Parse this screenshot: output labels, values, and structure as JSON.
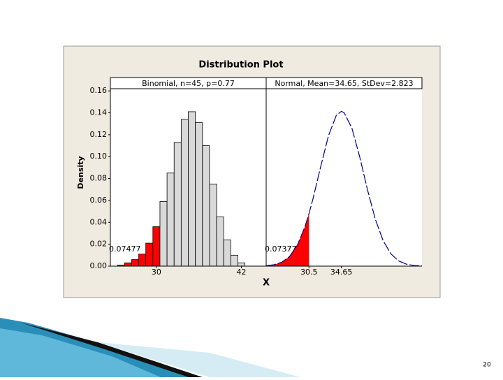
{
  "figure": {
    "title": "Distribution Plot",
    "y_label": "Density",
    "x_label": "X"
  },
  "slide": {
    "page_number": "20"
  },
  "chart_data": [
    {
      "type": "bar",
      "subtitle": "Binomial, n=45, p=0.77",
      "x": [
        25,
        26,
        27,
        28,
        29,
        30,
        31,
        32,
        33,
        34,
        35,
        36,
        37,
        38,
        39,
        40,
        41,
        42
      ],
      "values": [
        0.001,
        0.003,
        0.006,
        0.011,
        0.021,
        0.036,
        0.059,
        0.085,
        0.113,
        0.134,
        0.141,
        0.131,
        0.11,
        0.075,
        0.045,
        0.024,
        0.01,
        0.003
      ],
      "colors": [
        "#ff0000",
        "#ff0000",
        "#ff0000",
        "#ff0000",
        "#ff0000",
        "#ff0000",
        "#d9d9d9",
        "#d9d9d9",
        "#d9d9d9",
        "#d9d9d9",
        "#d9d9d9",
        "#d9d9d9",
        "#d9d9d9",
        "#d9d9d9",
        "#d9d9d9",
        "#d9d9d9",
        "#d9d9d9",
        "#d9d9d9"
      ],
      "annotation": "0.07477",
      "xlim": [
        23.5,
        45.5
      ],
      "xticks": [
        30,
        42
      ],
      "ylim": [
        0,
        0.162
      ],
      "yticks": [
        {
          "value": 0,
          "label": "0.00"
        },
        {
          "value": 0.02,
          "label": "0.02"
        },
        {
          "value": 0.04,
          "label": "0.04"
        },
        {
          "value": 0.06,
          "label": "0.06"
        },
        {
          "value": 0.08,
          "label": "0.08"
        },
        {
          "value": 0.1,
          "label": "0.10"
        },
        {
          "value": 0.12,
          "label": "0.12"
        },
        {
          "value": 0.14,
          "label": "0.14"
        },
        {
          "value": 0.16,
          "label": "0.16"
        }
      ]
    },
    {
      "type": "line",
      "subtitle": "Normal, Mean=34.65, StDev=2.823",
      "x": [
        25,
        26,
        27,
        28,
        29,
        30,
        30.5,
        31,
        32,
        33,
        34,
        34.65,
        35,
        36,
        37,
        38,
        39,
        40,
        41,
        42,
        43,
        44,
        45
      ],
      "values": [
        0.0004,
        0.0013,
        0.0036,
        0.0088,
        0.0191,
        0.0364,
        0.048,
        0.0612,
        0.0909,
        0.1191,
        0.1376,
        0.1413,
        0.1402,
        0.1261,
        0.1,
        0.0699,
        0.0431,
        0.0235,
        0.0113,
        0.0048,
        0.0018,
        0.0006,
        0.0002
      ],
      "color": "#00008b",
      "shade_color": "#ff0000",
      "shade_upper": 30.5,
      "annotation": "0.07377",
      "xlim": [
        25,
        45
      ],
      "xticks": [
        30.5,
        34.65
      ],
      "ylim": [
        0,
        0.162
      ]
    }
  ]
}
